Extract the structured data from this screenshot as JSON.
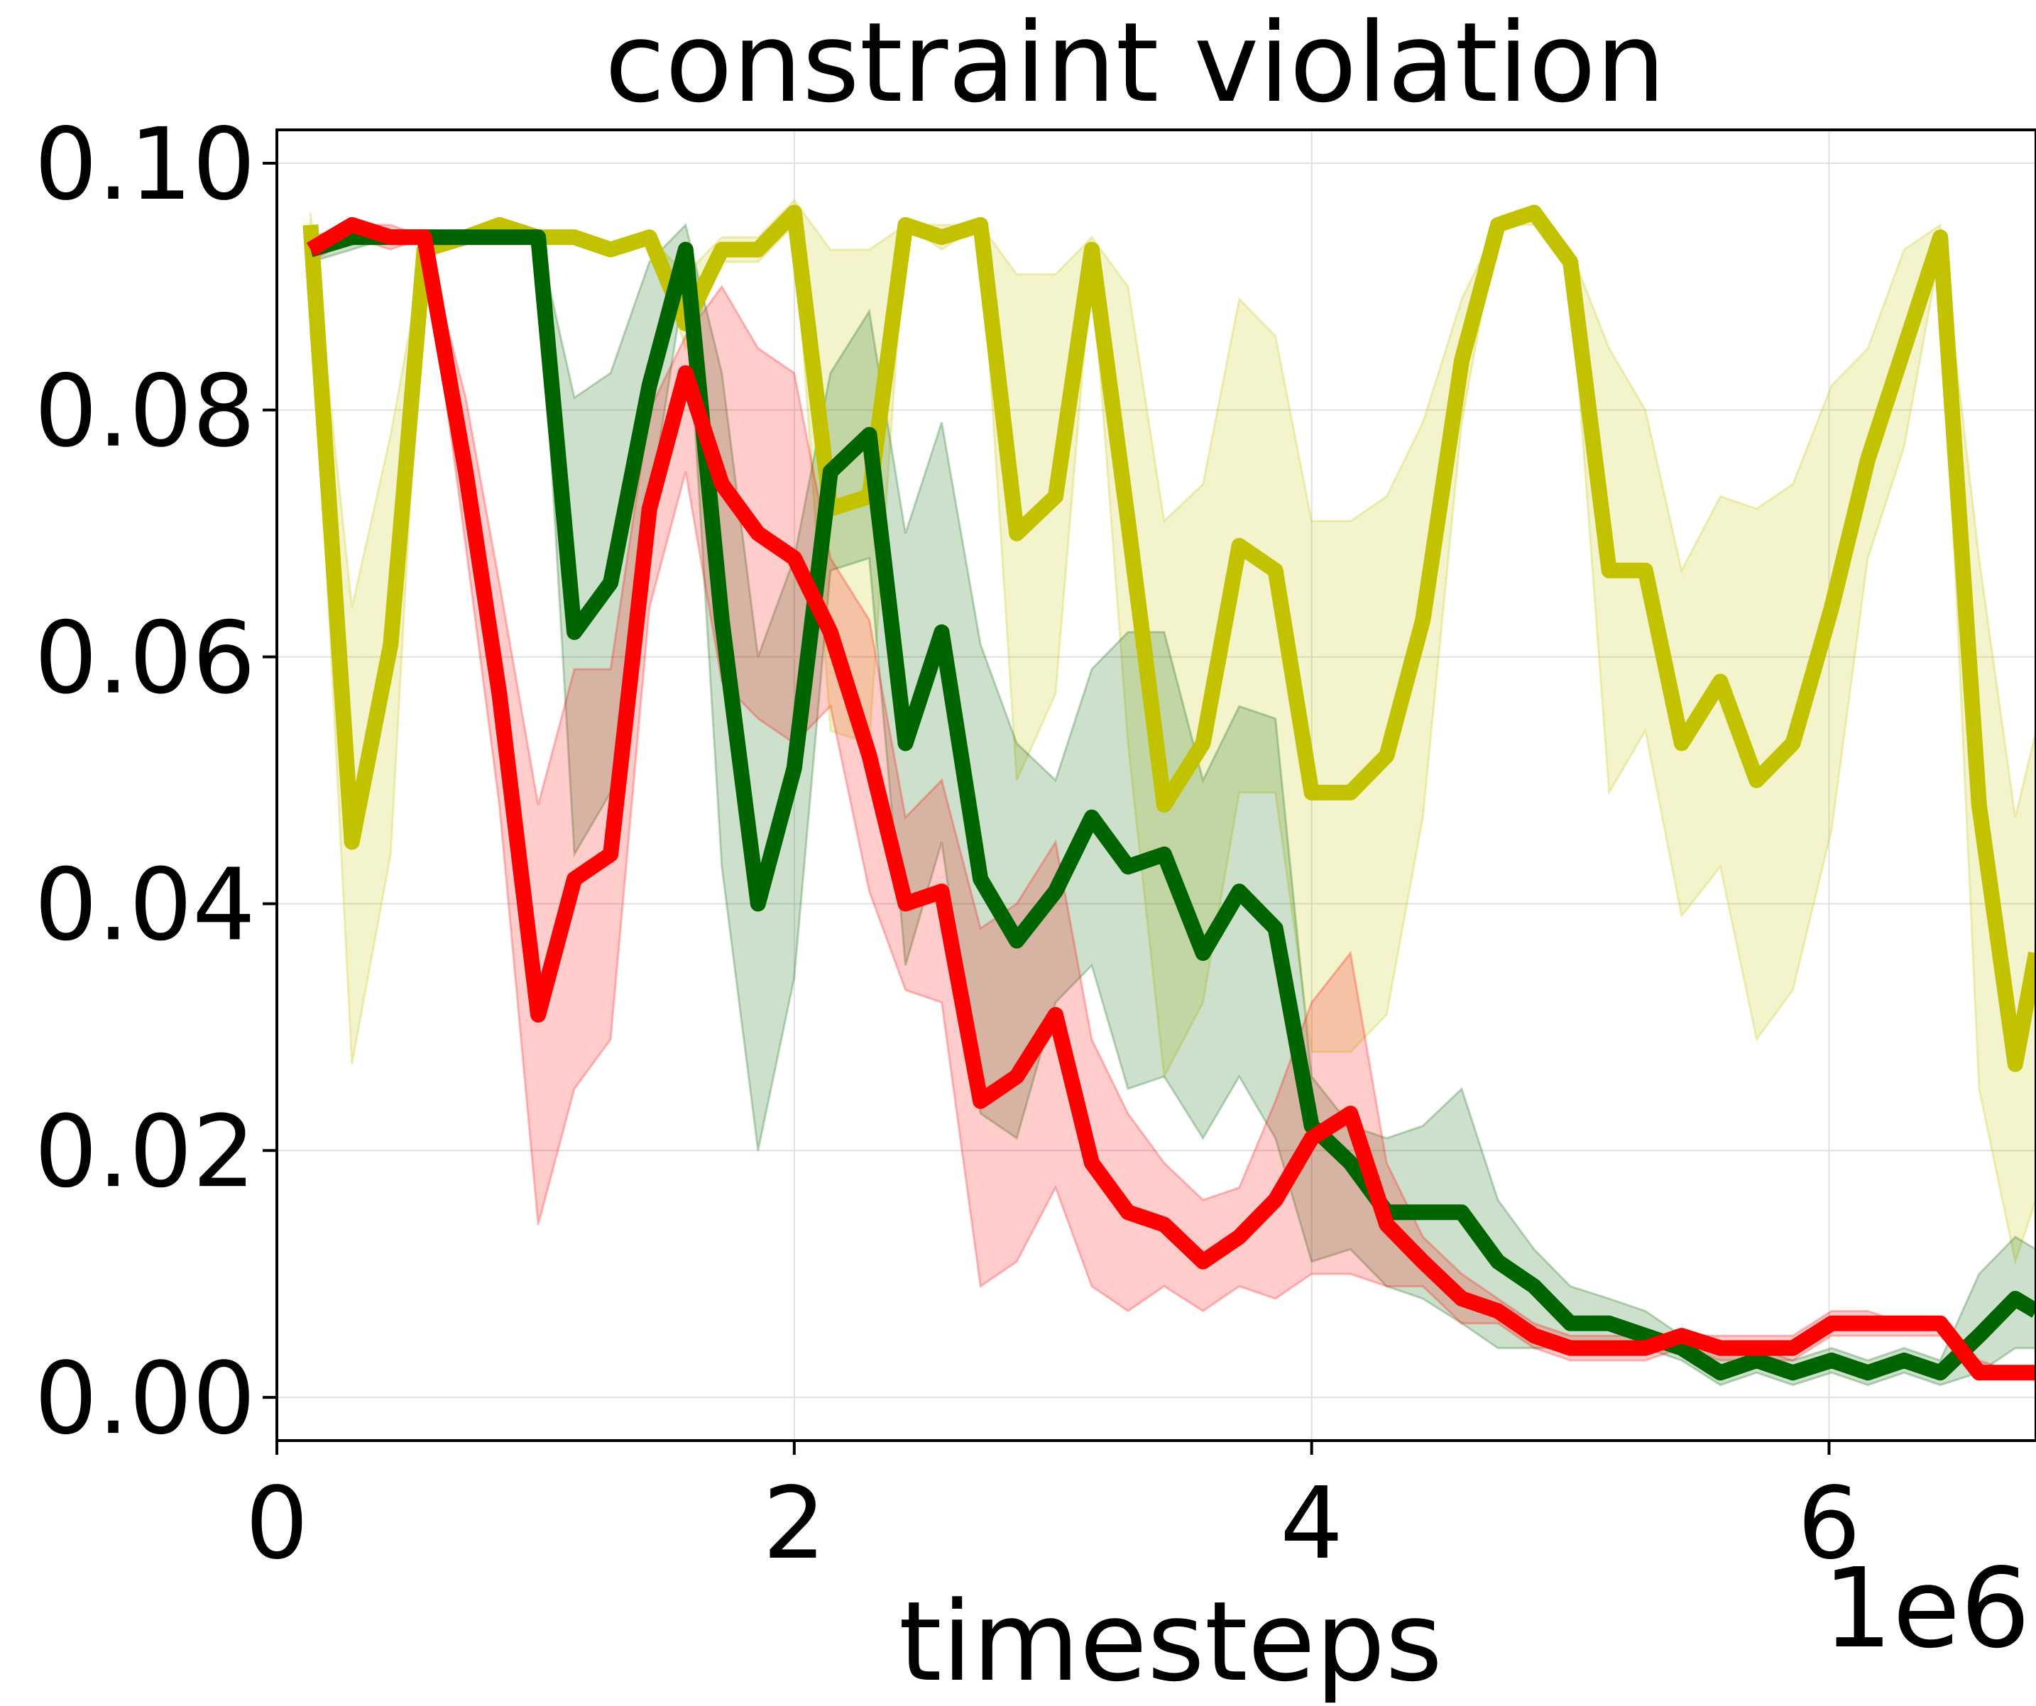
{
  "chart_data": {
    "type": "line",
    "title": "constraint violation",
    "xlabel": "timesteps",
    "ylabel": "",
    "x_offset_text": "1e6",
    "xlim": [
      0,
      6.8
    ],
    "ylim": [
      -0.0035,
      0.1027
    ],
    "x_ticks": [
      0,
      2,
      4,
      6
    ],
    "x_tick_labels": [
      "0",
      "2",
      "4",
      "6"
    ],
    "y_ticks": [
      0.0,
      0.02,
      0.04,
      0.06,
      0.08,
      0.1
    ],
    "y_tick_labels": [
      "0.00",
      "0.02",
      "0.04",
      "0.06",
      "0.08",
      "0.10"
    ],
    "grid": true,
    "legend": "none",
    "series": [
      {
        "color": "#c2c200",
        "x": [
          0.13,
          0.29,
          0.44,
          0.57,
          0.73,
          0.86,
          1.01,
          1.15,
          1.29,
          1.44,
          1.58,
          1.72,
          1.86,
          2.0,
          2.14,
          2.29,
          2.43,
          2.57,
          2.72,
          2.86,
          3.01,
          3.15,
          3.29,
          3.43,
          3.58,
          3.72,
          3.86,
          4.0,
          4.15,
          4.29,
          4.43,
          4.58,
          4.72,
          4.86,
          5.0,
          5.15,
          5.29,
          5.43,
          5.58,
          5.72,
          5.86,
          6.01,
          6.15,
          6.29,
          6.43,
          6.58,
          6.72,
          6.8
        ],
        "y": [
          0.095,
          0.045,
          0.061,
          0.093,
          0.094,
          0.095,
          0.094,
          0.094,
          0.093,
          0.094,
          0.087,
          0.093,
          0.093,
          0.096,
          0.072,
          0.073,
          0.095,
          0.094,
          0.095,
          0.07,
          0.073,
          0.093,
          0.071,
          0.048,
          0.053,
          0.069,
          0.067,
          0.049,
          0.049,
          0.052,
          0.063,
          0.084,
          0.095,
          0.096,
          0.092,
          0.067,
          0.067,
          0.053,
          0.058,
          0.05,
          0.053,
          0.064,
          0.076,
          0.085,
          0.094,
          0.048,
          0.027,
          0.036
        ],
        "upper": [
          0.096,
          0.064,
          0.078,
          0.093,
          0.094,
          0.095,
          0.094,
          0.094,
          0.093,
          0.094,
          0.091,
          0.094,
          0.094,
          0.097,
          0.093,
          0.093,
          0.095,
          0.095,
          0.095,
          0.091,
          0.091,
          0.094,
          0.09,
          0.071,
          0.074,
          0.089,
          0.086,
          0.071,
          0.071,
          0.073,
          0.079,
          0.089,
          0.095,
          0.096,
          0.093,
          0.085,
          0.08,
          0.067,
          0.073,
          0.072,
          0.074,
          0.082,
          0.085,
          0.093,
          0.095,
          0.068,
          0.047,
          0.054
        ],
        "lower": [
          0.093,
          0.027,
          0.044,
          0.093,
          0.094,
          0.095,
          0.094,
          0.094,
          0.093,
          0.094,
          0.085,
          0.092,
          0.092,
          0.095,
          0.054,
          0.053,
          0.095,
          0.093,
          0.095,
          0.05,
          0.057,
          0.092,
          0.053,
          0.026,
          0.032,
          0.049,
          0.049,
          0.028,
          0.028,
          0.031,
          0.047,
          0.079,
          0.095,
          0.095,
          0.091,
          0.049,
          0.054,
          0.039,
          0.043,
          0.029,
          0.033,
          0.046,
          0.068,
          0.077,
          0.093,
          0.025,
          0.011,
          0.016
        ]
      },
      {
        "color": "#006400",
        "x": [
          0.13,
          0.29,
          0.44,
          0.57,
          0.73,
          0.86,
          1.01,
          1.15,
          1.29,
          1.44,
          1.58,
          1.72,
          1.86,
          2.0,
          2.14,
          2.29,
          2.43,
          2.57,
          2.72,
          2.86,
          3.01,
          3.15,
          3.29,
          3.43,
          3.58,
          3.72,
          3.86,
          4.0,
          4.15,
          4.29,
          4.43,
          4.58,
          4.72,
          4.86,
          5.0,
          5.15,
          5.29,
          5.43,
          5.58,
          5.72,
          5.86,
          6.01,
          6.15,
          6.29,
          6.43,
          6.58,
          6.72,
          6.8
        ],
        "y": [
          0.093,
          0.094,
          0.094,
          0.094,
          0.094,
          0.094,
          0.094,
          0.062,
          0.066,
          0.082,
          0.093,
          0.063,
          0.04,
          0.051,
          0.075,
          0.078,
          0.053,
          0.062,
          0.042,
          0.037,
          0.041,
          0.047,
          0.043,
          0.044,
          0.036,
          0.041,
          0.038,
          0.022,
          0.019,
          0.015,
          0.015,
          0.015,
          0.011,
          0.009,
          0.006,
          0.006,
          0.005,
          0.004,
          0.002,
          0.003,
          0.002,
          0.003,
          0.002,
          0.003,
          0.002,
          0.005,
          0.008,
          0.007
        ],
        "upper": [
          0.094,
          0.094,
          0.094,
          0.094,
          0.094,
          0.094,
          0.094,
          0.081,
          0.083,
          0.092,
          0.095,
          0.083,
          0.06,
          0.068,
          0.083,
          0.088,
          0.07,
          0.079,
          0.061,
          0.053,
          0.05,
          0.059,
          0.062,
          0.062,
          0.05,
          0.056,
          0.055,
          0.026,
          0.022,
          0.021,
          0.022,
          0.025,
          0.016,
          0.012,
          0.009,
          0.008,
          0.007,
          0.005,
          0.004,
          0.004,
          0.003,
          0.004,
          0.003,
          0.004,
          0.003,
          0.01,
          0.013,
          0.012
        ],
        "lower": [
          0.092,
          0.093,
          0.094,
          0.094,
          0.094,
          0.094,
          0.094,
          0.044,
          0.049,
          0.072,
          0.091,
          0.043,
          0.02,
          0.034,
          0.067,
          0.068,
          0.035,
          0.045,
          0.023,
          0.021,
          0.032,
          0.035,
          0.025,
          0.026,
          0.021,
          0.026,
          0.021,
          0.011,
          0.012,
          0.009,
          0.008,
          0.006,
          0.004,
          0.004,
          0.004,
          0.004,
          0.004,
          0.003,
          0.001,
          0.002,
          0.001,
          0.002,
          0.001,
          0.002,
          0.001,
          0.002,
          0.004,
          0.004
        ]
      },
      {
        "color": "#ff0000",
        "x": [
          0.13,
          0.29,
          0.44,
          0.57,
          0.73,
          0.86,
          1.01,
          1.15,
          1.29,
          1.44,
          1.58,
          1.72,
          1.86,
          2.0,
          2.14,
          2.29,
          2.43,
          2.57,
          2.72,
          2.86,
          3.01,
          3.15,
          3.29,
          3.43,
          3.58,
          3.72,
          3.86,
          4.0,
          4.15,
          4.29,
          4.43,
          4.58,
          4.72,
          4.86,
          5.0,
          5.15,
          5.29,
          5.43,
          5.58,
          5.72,
          5.86,
          6.01,
          6.15,
          6.29,
          6.43,
          6.58,
          6.72,
          6.8
        ],
        "y": [
          0.093,
          0.095,
          0.094,
          0.094,
          0.075,
          0.057,
          0.031,
          0.042,
          0.044,
          0.072,
          0.083,
          0.074,
          0.07,
          0.068,
          0.062,
          0.052,
          0.04,
          0.041,
          0.024,
          0.026,
          0.031,
          0.019,
          0.015,
          0.014,
          0.011,
          0.013,
          0.016,
          0.021,
          0.023,
          0.014,
          0.011,
          0.008,
          0.007,
          0.005,
          0.004,
          0.004,
          0.004,
          0.005,
          0.004,
          0.004,
          0.004,
          0.006,
          0.006,
          0.006,
          0.006,
          0.002,
          0.002,
          0.002
        ],
        "upper": [
          0.094,
          0.095,
          0.095,
          0.094,
          0.081,
          0.066,
          0.048,
          0.059,
          0.059,
          0.08,
          0.086,
          0.09,
          0.085,
          0.083,
          0.068,
          0.063,
          0.047,
          0.05,
          0.038,
          0.04,
          0.045,
          0.029,
          0.023,
          0.019,
          0.016,
          0.017,
          0.024,
          0.032,
          0.036,
          0.019,
          0.013,
          0.01,
          0.008,
          0.006,
          0.005,
          0.005,
          0.005,
          0.005,
          0.005,
          0.005,
          0.005,
          0.007,
          0.007,
          0.006,
          0.006,
          0.003,
          0.002,
          0.002
        ],
        "lower": [
          0.092,
          0.094,
          0.093,
          0.094,
          0.069,
          0.048,
          0.014,
          0.025,
          0.029,
          0.064,
          0.075,
          0.058,
          0.055,
          0.053,
          0.056,
          0.041,
          0.033,
          0.032,
          0.009,
          0.011,
          0.017,
          0.009,
          0.007,
          0.009,
          0.007,
          0.009,
          0.008,
          0.01,
          0.01,
          0.009,
          0.009,
          0.006,
          0.006,
          0.004,
          0.003,
          0.003,
          0.003,
          0.004,
          0.003,
          0.003,
          0.003,
          0.005,
          0.005,
          0.005,
          0.005,
          0.002,
          0.002,
          0.002
        ]
      }
    ]
  }
}
